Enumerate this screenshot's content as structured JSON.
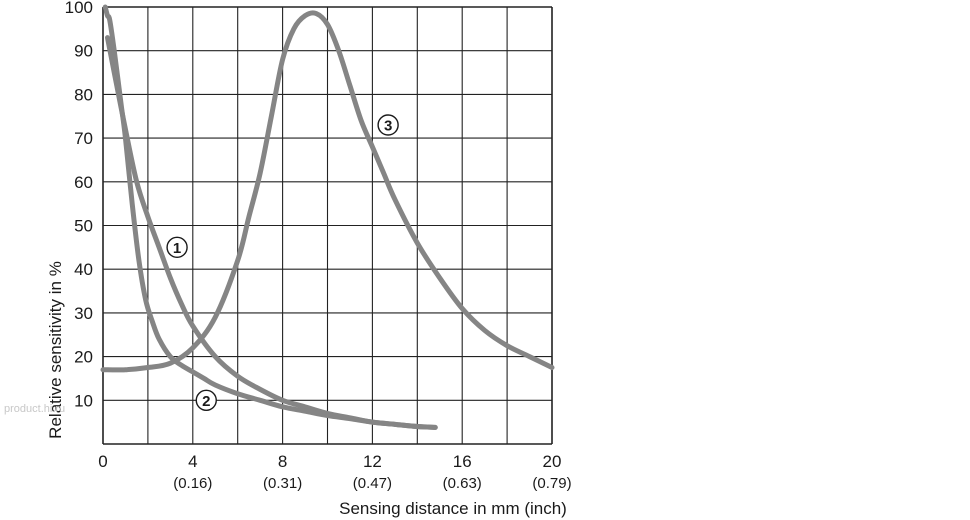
{
  "chart_data": {
    "type": "line",
    "title": "",
    "xlabel": "Sensing distance in mm (inch)",
    "ylabel": "Relative sensitivity in %",
    "xlim": [
      0,
      20
    ],
    "ylim": [
      0,
      100
    ],
    "grid": true,
    "x_ticks": [
      {
        "value": 0,
        "label": "0",
        "sub": ""
      },
      {
        "value": 4,
        "label": "4",
        "sub": "(0.16)"
      },
      {
        "value": 8,
        "label": "8",
        "sub": "(0.31)"
      },
      {
        "value": 12,
        "label": "12",
        "sub": "(0.47)"
      },
      {
        "value": 16,
        "label": "16",
        "sub": "(0.63)"
      },
      {
        "value": 20,
        "label": "20",
        "sub": "(0.79)"
      }
    ],
    "y_ticks": [
      "10",
      "20",
      "30",
      "40",
      "50",
      "60",
      "70",
      "80",
      "90",
      "100"
    ],
    "series": [
      {
        "name": "1",
        "marker": "①",
        "label_at": [
          3.3,
          45
        ],
        "points": [
          [
            0.2,
            93
          ],
          [
            0.5,
            85
          ],
          [
            1,
            72
          ],
          [
            1.5,
            60
          ],
          [
            2,
            52
          ],
          [
            2.5,
            45
          ],
          [
            3,
            38
          ],
          [
            3.5,
            32
          ],
          [
            4,
            27
          ],
          [
            5,
            20
          ],
          [
            6,
            15.5
          ],
          [
            7,
            12.5
          ],
          [
            8,
            10
          ],
          [
            9,
            8.5
          ],
          [
            10,
            7
          ],
          [
            11,
            6
          ],
          [
            12,
            5
          ],
          [
            13,
            4.5
          ],
          [
            14,
            4
          ],
          [
            14.8,
            3.8
          ]
        ]
      },
      {
        "name": "2",
        "marker": "②",
        "label_at": [
          4.6,
          10
        ],
        "points": [
          [
            0.1,
            100
          ],
          [
            0.2,
            98
          ],
          [
            0.3,
            97
          ],
          [
            0.5,
            90
          ],
          [
            0.8,
            78
          ],
          [
            1,
            70
          ],
          [
            1.3,
            55
          ],
          [
            1.6,
            42
          ],
          [
            1.9,
            33
          ],
          [
            2.2,
            28
          ],
          [
            2.5,
            24
          ],
          [
            3,
            20
          ],
          [
            3.5,
            18
          ],
          [
            4,
            16.5
          ],
          [
            4.5,
            15
          ],
          [
            5,
            13.5
          ],
          [
            6,
            11.5
          ],
          [
            7,
            10
          ],
          [
            8,
            8.5
          ],
          [
            9,
            7.5
          ],
          [
            10,
            6.5
          ],
          [
            11,
            5.8
          ],
          [
            12,
            5
          ],
          [
            13,
            4.5
          ],
          [
            14,
            4
          ],
          [
            14.8,
            3.8
          ]
        ]
      },
      {
        "name": "3",
        "marker": "③",
        "label_at": [
          12.7,
          73
        ],
        "points": [
          [
            0,
            17
          ],
          [
            1,
            17
          ],
          [
            2,
            17.5
          ],
          [
            3,
            18.5
          ],
          [
            4,
            22
          ],
          [
            5,
            29
          ],
          [
            6,
            42
          ],
          [
            6.5,
            52
          ],
          [
            7,
            62
          ],
          [
            7.5,
            75
          ],
          [
            8,
            88
          ],
          [
            8.5,
            95
          ],
          [
            9,
            98
          ],
          [
            9.5,
            98.5
          ],
          [
            10,
            96
          ],
          [
            10.5,
            90
          ],
          [
            11,
            82
          ],
          [
            11.5,
            74
          ],
          [
            12,
            68
          ],
          [
            12.5,
            62
          ],
          [
            13,
            56
          ],
          [
            14,
            46
          ],
          [
            15,
            38
          ],
          [
            16,
            31
          ],
          [
            17,
            26
          ],
          [
            18,
            22.5
          ],
          [
            19,
            20
          ],
          [
            20,
            17.5
          ]
        ]
      }
    ],
    "colors": {
      "curve": "#858585",
      "grid": "#222222",
      "axis": "#111111"
    }
  },
  "watermark": "product.hi.ru"
}
